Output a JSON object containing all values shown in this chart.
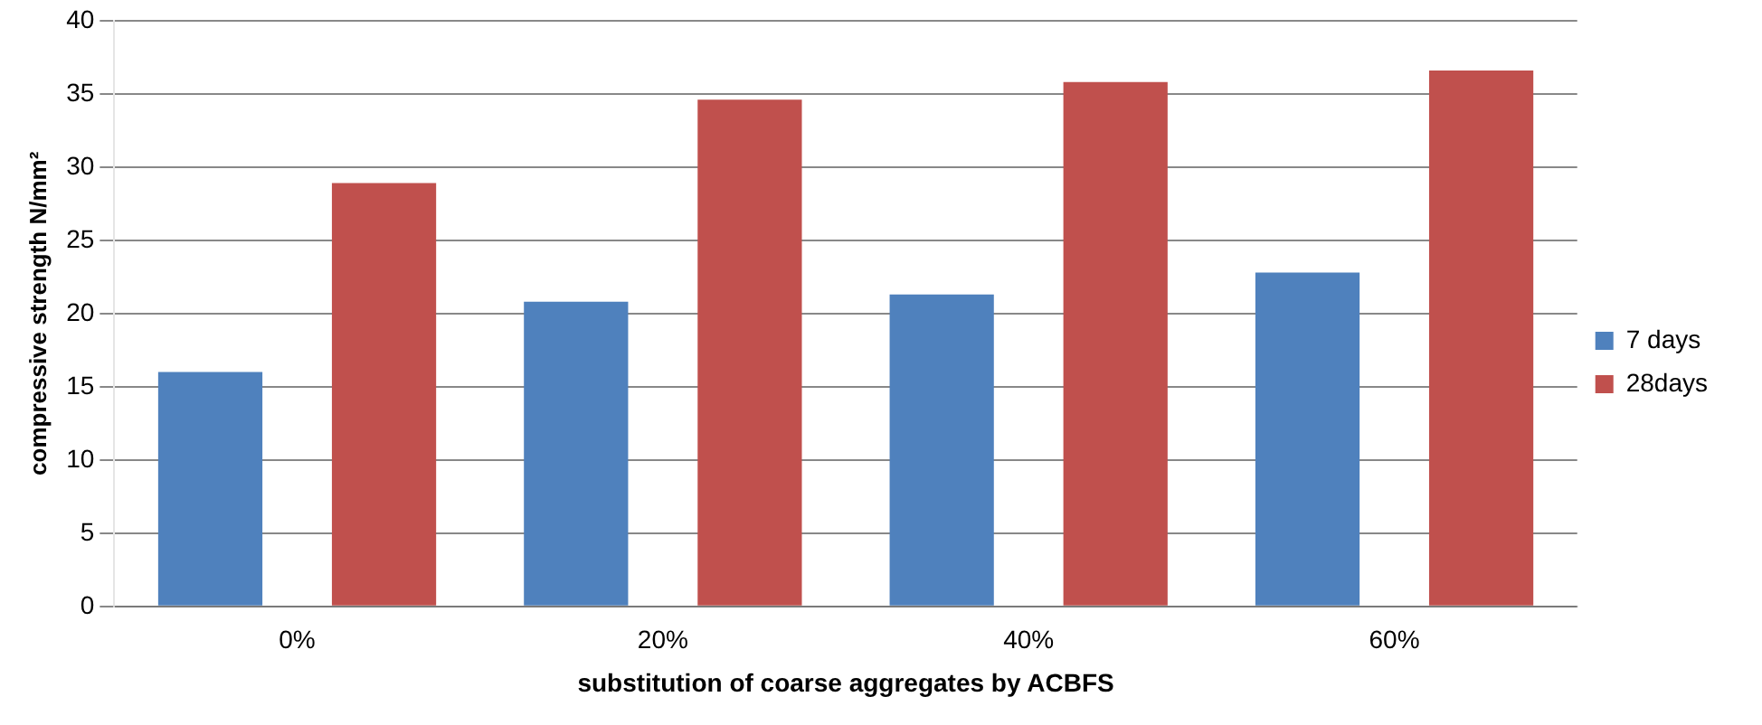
{
  "chart_data": {
    "type": "bar",
    "xlabel": "substitution of coarse aggregates by ACBFS",
    "ylabel": "compressive strength N/mm²",
    "categories": [
      "0%",
      "20%",
      "40%",
      "60%"
    ],
    "series": [
      {
        "name": "7 days",
        "color": "#4f81bd",
        "values": [
          16,
          20.8,
          21.3,
          22.8
        ]
      },
      {
        "name": "28days",
        "color": "#c0504d",
        "values": [
          28.9,
          34.6,
          35.8,
          36.6
        ]
      }
    ],
    "ylim": [
      0,
      40
    ],
    "yticks": [
      0,
      5,
      10,
      15,
      20,
      25,
      30,
      35,
      40
    ],
    "grid": "y",
    "legend": "right"
  }
}
